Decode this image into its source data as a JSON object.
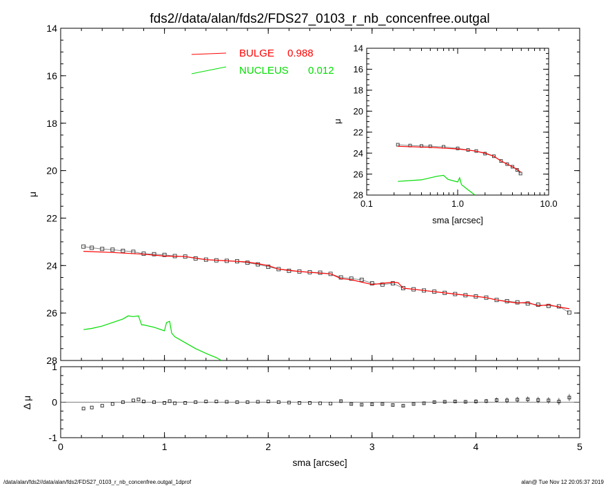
{
  "title": "fds2//data/alan/fds2/FDS27_0103_r_nb_concenfree.outgal",
  "footer": {
    "left": "/data/alan/fds2//data/alan/fds2/FDS27_0103_r_nb_concenfree.outgal_1dprof",
    "right": "alan@  Tue Nov 12 20:05:37 2019"
  },
  "colors": {
    "bulge": "#ff0000",
    "nucleus": "#00dd00",
    "data": "#555555",
    "axes": "#000000"
  },
  "chart_data": [
    {
      "type": "line",
      "panel": "main",
      "xlabel": "",
      "ylabel": "μ",
      "xlim": [
        0,
        5
      ],
      "ylim": [
        28,
        14
      ],
      "y_inverted": true,
      "xticks": [
        "0",
        "1",
        "2",
        "3",
        "4",
        "5"
      ],
      "yticks": [
        "14",
        "16",
        "18",
        "20",
        "22",
        "24",
        "26",
        "28"
      ],
      "legend_placement": "top-center",
      "legend": [
        {
          "label": "BULGE",
          "value": "0.988",
          "color": "#ff0000"
        },
        {
          "label": "NUCLEUS",
          "value": "0.012",
          "color": "#00dd00"
        }
      ],
      "series": [
        {
          "name": "data",
          "marker": "square",
          "x": [
            0.22,
            0.3,
            0.4,
            0.5,
            0.6,
            0.7,
            0.8,
            0.9,
            1.0,
            1.1,
            1.2,
            1.3,
            1.4,
            1.5,
            1.6,
            1.7,
            1.8,
            1.9,
            2.0,
            2.1,
            2.2,
            2.3,
            2.4,
            2.5,
            2.6,
            2.7,
            2.8,
            2.9,
            3.0,
            3.1,
            3.2,
            3.3,
            3.4,
            3.5,
            3.6,
            3.7,
            3.8,
            3.9,
            4.0,
            4.1,
            4.2,
            4.3,
            4.4,
            4.5,
            4.6,
            4.7,
            4.8,
            4.9
          ],
          "y": [
            23.2,
            23.25,
            23.3,
            23.33,
            23.38,
            23.42,
            23.5,
            23.52,
            23.55,
            23.6,
            23.62,
            23.7,
            23.75,
            23.78,
            23.8,
            23.82,
            23.88,
            23.95,
            24.05,
            24.15,
            24.22,
            24.25,
            24.28,
            24.3,
            24.35,
            24.5,
            24.55,
            24.6,
            24.75,
            24.8,
            24.75,
            24.95,
            25.0,
            25.05,
            25.1,
            25.15,
            25.2,
            25.25,
            25.3,
            25.35,
            25.45,
            25.5,
            25.55,
            25.6,
            25.65,
            25.7,
            25.72,
            25.98
          ]
        },
        {
          "name": "BULGE",
          "x": [
            0.22,
            0.5,
            0.8,
            1.0,
            1.2,
            1.4,
            1.6,
            1.8,
            1.9,
            2.0,
            2.1,
            2.3,
            2.5,
            2.6,
            2.7,
            2.8,
            3.0,
            3.1,
            3.2,
            3.25,
            3.3,
            3.4,
            3.6,
            3.8,
            4.0,
            4.1,
            4.2,
            4.3,
            4.4,
            4.5,
            4.6,
            4.7,
            4.8,
            4.9
          ],
          "y": [
            23.4,
            23.45,
            23.52,
            23.6,
            23.62,
            23.75,
            23.8,
            23.85,
            23.92,
            24.0,
            24.15,
            24.25,
            24.32,
            24.35,
            24.55,
            24.6,
            24.8,
            24.75,
            24.7,
            24.72,
            24.95,
            25.0,
            25.1,
            25.2,
            25.3,
            25.35,
            25.45,
            25.52,
            25.58,
            25.55,
            25.7,
            25.65,
            25.75,
            25.82
          ]
        },
        {
          "name": "NUCLEUS",
          "x": [
            0.22,
            0.3,
            0.4,
            0.5,
            0.6,
            0.65,
            0.7,
            0.75,
            0.78,
            0.8,
            0.9,
            1.0,
            1.02,
            1.05,
            1.07,
            1.1,
            1.2,
            1.3,
            1.4,
            1.5,
            1.55
          ],
          "y": [
            26.7,
            26.65,
            26.55,
            26.4,
            26.25,
            26.12,
            26.15,
            26.12,
            26.5,
            26.5,
            26.6,
            26.75,
            26.4,
            26.35,
            26.85,
            27.0,
            27.25,
            27.5,
            27.7,
            27.88,
            28.0
          ]
        }
      ]
    },
    {
      "type": "scatter",
      "panel": "residuals",
      "xlabel": "sma [arcsec]",
      "ylabel": "Δ μ",
      "xlim": [
        0,
        5
      ],
      "ylim": [
        -1,
        1
      ],
      "xticks": [
        "0",
        "1",
        "2",
        "3",
        "4",
        "5"
      ],
      "yticks": [
        "-1",
        "0",
        "1"
      ],
      "series": [
        {
          "name": "residual",
          "x": [
            0.22,
            0.3,
            0.4,
            0.5,
            0.6,
            0.7,
            0.75,
            0.8,
            0.9,
            1.0,
            1.05,
            1.1,
            1.2,
            1.3,
            1.4,
            1.5,
            1.6,
            1.7,
            1.8,
            1.9,
            2.0,
            2.1,
            2.2,
            2.3,
            2.4,
            2.5,
            2.6,
            2.7,
            2.8,
            2.9,
            3.0,
            3.1,
            3.2,
            3.3,
            3.4,
            3.5,
            3.6,
            3.7,
            3.8,
            3.9,
            4.0,
            4.1,
            4.2,
            4.3,
            4.4,
            4.5,
            4.6,
            4.7,
            4.8,
            4.9
          ],
          "y": [
            -0.18,
            -0.15,
            -0.1,
            -0.05,
            0.0,
            0.05,
            0.08,
            0.02,
            0.0,
            -0.02,
            0.03,
            -0.03,
            -0.02,
            0.0,
            0.02,
            0.02,
            0.01,
            0.0,
            0.0,
            0.01,
            0.02,
            0.0,
            -0.01,
            -0.02,
            -0.02,
            -0.03,
            -0.04,
            0.03,
            -0.05,
            -0.07,
            -0.06,
            -0.05,
            -0.08,
            -0.1,
            -0.05,
            -0.03,
            0.0,
            0.01,
            0.02,
            0.01,
            0.02,
            0.03,
            0.06,
            0.05,
            0.07,
            0.08,
            0.06,
            0.05,
            0.02,
            0.13
          ],
          "err": [
            0.01,
            0.01,
            0.01,
            0.01,
            0.01,
            0.01,
            0.01,
            0.01,
            0.01,
            0.01,
            0.01,
            0.01,
            0.01,
            0.01,
            0.01,
            0.01,
            0.01,
            0.01,
            0.01,
            0.01,
            0.01,
            0.01,
            0.02,
            0.02,
            0.02,
            0.02,
            0.02,
            0.04,
            0.03,
            0.03,
            0.03,
            0.03,
            0.03,
            0.03,
            0.03,
            0.04,
            0.04,
            0.05,
            0.05,
            0.05,
            0.06,
            0.06,
            0.07,
            0.08,
            0.08,
            0.08,
            0.09,
            0.09,
            0.1,
            0.1
          ]
        }
      ]
    },
    {
      "type": "line",
      "panel": "inset",
      "xlabel": "sma [arcsec]",
      "ylabel": "μ",
      "xscale": "log",
      "xlim": [
        0.1,
        10.0
      ],
      "ylim": [
        28,
        14
      ],
      "y_inverted": true,
      "xticks": [
        "0.1",
        "1.0",
        "10.0"
      ],
      "yticks": [
        "14",
        "16",
        "18",
        "20",
        "22",
        "24",
        "26",
        "28"
      ],
      "series": [
        {
          "name": "data",
          "marker": "square",
          "x": [
            0.22,
            0.3,
            0.4,
            0.5,
            0.7,
            1.0,
            1.3,
            1.6,
            2.0,
            2.5,
            3.0,
            3.5,
            4.0,
            4.5,
            4.9
          ],
          "y": [
            23.2,
            23.28,
            23.32,
            23.35,
            23.4,
            23.55,
            23.7,
            23.8,
            24.05,
            24.3,
            24.75,
            25.05,
            25.3,
            25.6,
            25.95
          ]
        },
        {
          "name": "BULGE",
          "x": [
            0.22,
            0.5,
            1.0,
            1.5,
            2.0,
            2.5,
            3.0,
            3.5,
            4.0,
            4.5,
            4.9
          ],
          "y": [
            23.35,
            23.45,
            23.6,
            23.78,
            24.0,
            24.3,
            24.75,
            25.05,
            25.3,
            25.55,
            25.8
          ]
        },
        {
          "name": "NUCLEUS",
          "x": [
            0.22,
            0.4,
            0.6,
            0.7,
            0.78,
            1.0,
            1.05,
            1.1,
            1.3,
            1.55
          ],
          "y": [
            26.7,
            26.55,
            26.2,
            26.12,
            26.5,
            26.75,
            26.35,
            27.0,
            27.5,
            28.0
          ]
        }
      ]
    }
  ]
}
